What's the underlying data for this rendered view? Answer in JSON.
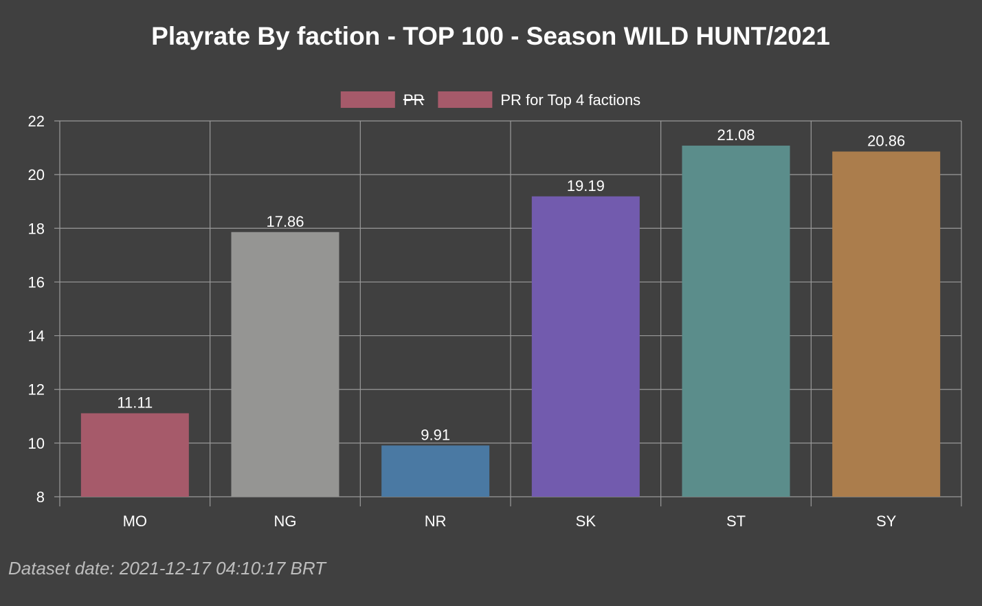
{
  "chart_data": {
    "type": "bar",
    "title": "Playrate By faction - TOP 100 - Season WILD HUNT/2021",
    "xlabel": "",
    "ylabel": "",
    "categories": [
      "MO",
      "NG",
      "NR",
      "SK",
      "ST",
      "SY"
    ],
    "series": [
      {
        "name": "PR",
        "hidden": true,
        "values": [
          11.11,
          17.86,
          9.91,
          19.19,
          21.08,
          20.86
        ],
        "colors": [
          "#a65a6a",
          "#959593",
          "#4a79a3",
          "#725bae",
          "#5b8d8b",
          "#ab7d4c"
        ]
      }
    ],
    "legend": [
      {
        "label": "PR",
        "struck": true,
        "color": "#a65a6a"
      },
      {
        "label": "PR for Top 4 factions",
        "struck": false,
        "color": "#a65a6a"
      }
    ],
    "legend_position": "top-center",
    "ylim": [
      8,
      22
    ],
    "yticks": [
      8,
      10,
      12,
      14,
      16,
      18,
      20,
      22
    ],
    "grid": true,
    "data_labels": true
  },
  "footer": {
    "dataset_date": "Dataset date: 2021-12-17 04:10:17 BRT"
  },
  "colors": {
    "background": "#404040",
    "grid": "#9a9a9a",
    "text": "#ffffff"
  }
}
